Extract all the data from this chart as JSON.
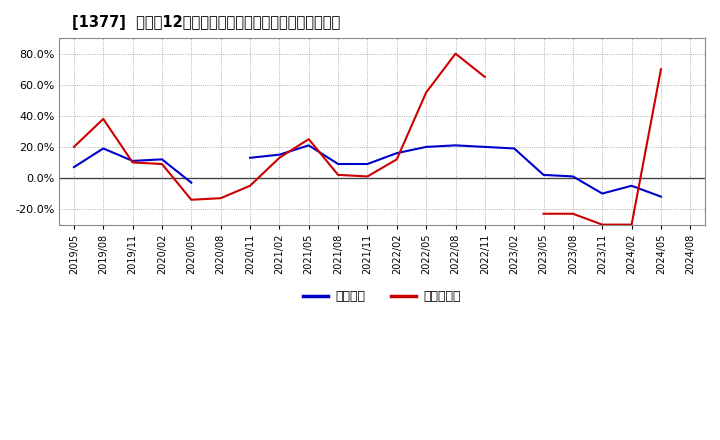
{
  "title": "[1377]  利益だ12か月移動合計の対前年同期増減率の推移",
  "legend_labels": [
    "経常利益",
    "当期純利益"
  ],
  "x_labels": [
    "2019/05",
    "2019/08",
    "2019/11",
    "2020/02",
    "2020/05",
    "2020/08",
    "2020/11",
    "2021/02",
    "2021/05",
    "2021/08",
    "2021/11",
    "2022/02",
    "2022/05",
    "2022/08",
    "2022/11",
    "2023/02",
    "2023/05",
    "2023/08",
    "2023/11",
    "2024/02",
    "2024/05",
    "2024/08"
  ],
  "keijo_rieki": [
    0.07,
    0.19,
    0.11,
    0.12,
    -0.03,
    null,
    0.13,
    0.15,
    0.21,
    0.09,
    0.09,
    0.16,
    0.2,
    0.21,
    0.2,
    0.19,
    0.02,
    0.01,
    -0.1,
    -0.05,
    -0.12,
    null
  ],
  "touki_rieki": [
    0.2,
    0.38,
    0.1,
    0.09,
    -0.14,
    -0.13,
    -0.05,
    0.13,
    0.25,
    0.02,
    0.01,
    0.12,
    0.55,
    0.8,
    0.65,
    null,
    -0.23,
    -0.23,
    -0.3,
    -0.3,
    0.7,
    null
  ],
  "ylim": [
    -0.3,
    0.9
  ],
  "yticks": [
    -0.2,
    0.0,
    0.2,
    0.4,
    0.6,
    0.8
  ],
  "line_color_keijo": "#0000cc",
  "line_color_touki": "#cc0000",
  "bg_color": "#ffffff",
  "grid_color": "#999999",
  "zero_line_color": "#444444"
}
